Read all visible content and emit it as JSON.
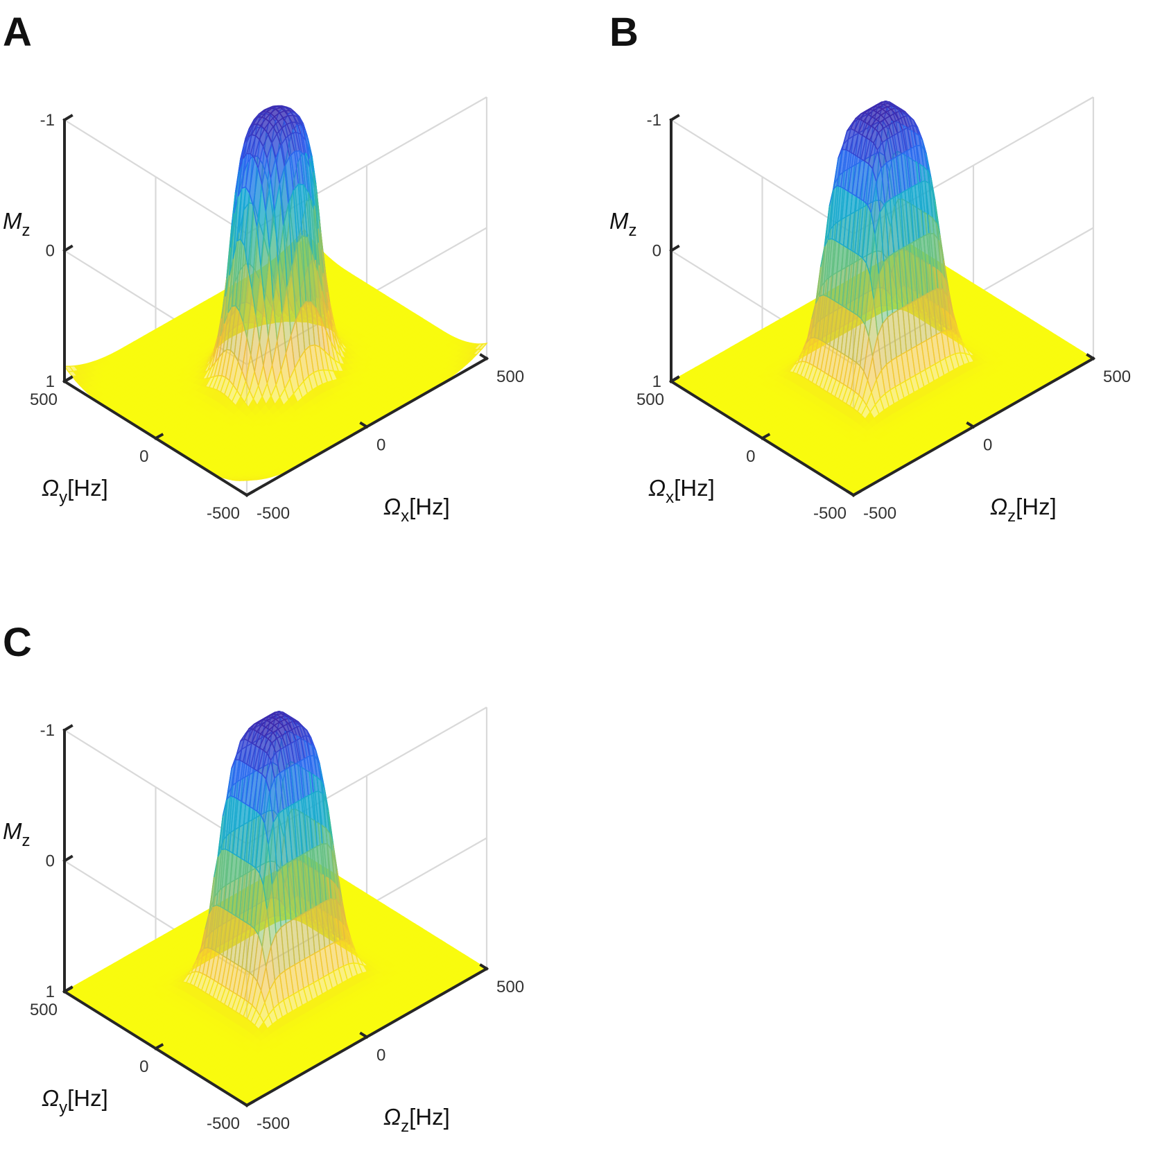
{
  "chart_data": [
    {
      "panel": "A",
      "type": "surface",
      "shape": "disk",
      "z_axis": {
        "label": "M",
        "label_sub": "z",
        "ticks": [
          "-1",
          "0",
          "1"
        ],
        "range": [
          -1,
          1
        ],
        "reversed": true
      },
      "left_axis": {
        "label": "Ω",
        "label_sub": "y",
        "unit": "[Hz]",
        "ticks": [
          "500",
          "0",
          "-500"
        ],
        "range": [
          -500,
          500
        ]
      },
      "right_axis": {
        "label": "Ω",
        "label_sub": "x",
        "unit": "[Hz]",
        "ticks": [
          "-500",
          "0",
          "500"
        ],
        "range": [
          -500,
          500
        ]
      },
      "plateau_value": -1,
      "baseline_value": 1,
      "approx_plateau_halfwidth_hz": 150
    },
    {
      "panel": "B",
      "type": "surface",
      "shape": "square",
      "z_axis": {
        "label": "M",
        "label_sub": "z",
        "ticks": [
          "-1",
          "0",
          "1"
        ],
        "range": [
          -1,
          1
        ],
        "reversed": true
      },
      "left_axis": {
        "label": "Ω",
        "label_sub": "x",
        "unit": "[Hz]",
        "ticks": [
          "500",
          "0",
          "-500"
        ],
        "range": [
          -500,
          500
        ]
      },
      "right_axis": {
        "label": "Ω",
        "label_sub": "z",
        "unit": "[Hz]",
        "ticks": [
          "-500",
          "0",
          "500"
        ],
        "range": [
          -500,
          500
        ]
      },
      "plateau_value": -1,
      "baseline_value": 1,
      "approx_plateau_halfwidth_hz": 150
    },
    {
      "panel": "C",
      "type": "surface",
      "shape": "square",
      "z_axis": {
        "label": "M",
        "label_sub": "z",
        "ticks": [
          "-1",
          "0",
          "1"
        ],
        "range": [
          -1,
          1
        ],
        "reversed": true
      },
      "left_axis": {
        "label": "Ω",
        "label_sub": "y",
        "unit": "[Hz]",
        "ticks": [
          "500",
          "0",
          "-500"
        ],
        "range": [
          -500,
          500
        ]
      },
      "right_axis": {
        "label": "Ω",
        "label_sub": "z",
        "unit": "[Hz]",
        "ticks": [
          "-500",
          "0",
          "500"
        ],
        "range": [
          -500,
          500
        ]
      },
      "plateau_value": -1,
      "baseline_value": 1,
      "approx_plateau_halfwidth_hz": 150
    }
  ],
  "colormap": [
    "#3e26a8",
    "#2e5ef2",
    "#14a6d8",
    "#3bbd9c",
    "#a7c45a",
    "#f0b93d",
    "#f9fb0e"
  ]
}
